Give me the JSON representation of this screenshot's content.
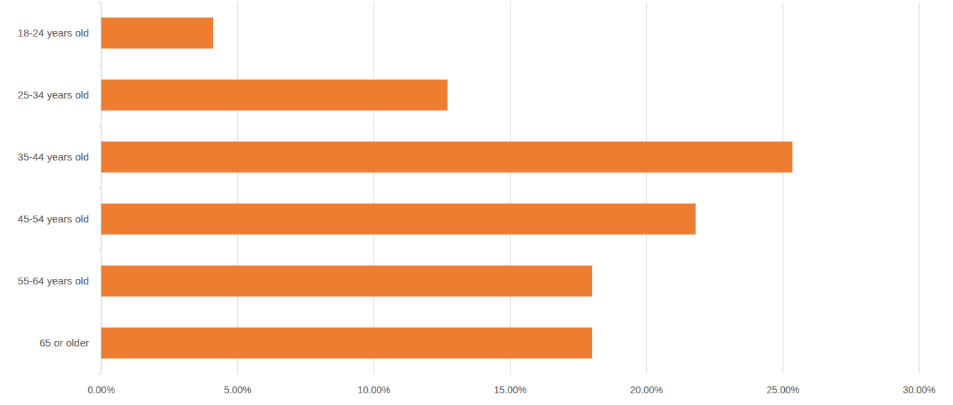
{
  "chart_data": {
    "type": "bar",
    "orientation": "horizontal",
    "categories": [
      "18-24 years old",
      "25-34 years old",
      "35-44 years old",
      "45-54 years old",
      "55-64 years old",
      "65 or older"
    ],
    "values": [
      4.1,
      12.7,
      25.35,
      21.8,
      18.0,
      18.0
    ],
    "color": "#ed7d31",
    "xlim": [
      0,
      30
    ],
    "xticks": [
      {
        "value": 0,
        "label": "0.00%"
      },
      {
        "value": 5,
        "label": "5.00%"
      },
      {
        "value": 10,
        "label": "10.00%"
      },
      {
        "value": 15,
        "label": "15.00%"
      },
      {
        "value": 20,
        "label": "20.00%"
      },
      {
        "value": 25,
        "label": "25.00%"
      },
      {
        "value": 30,
        "label": "30.00%"
      }
    ],
    "grid": true
  }
}
